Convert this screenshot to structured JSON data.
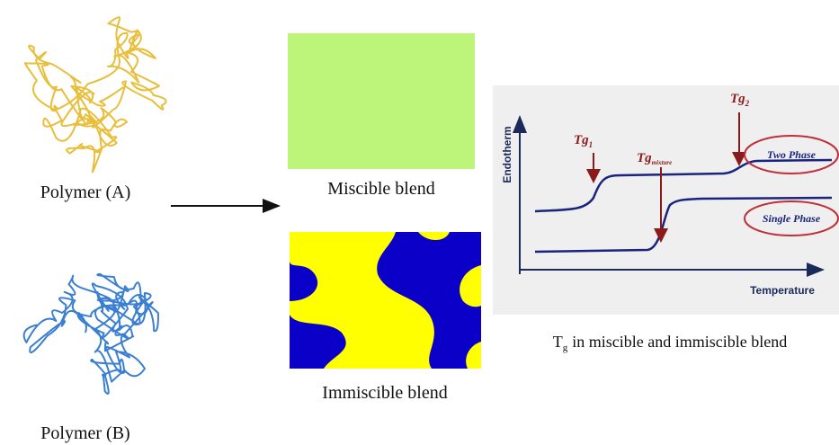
{
  "polymers": [
    {
      "label": "Polymer (A)"
    },
    {
      "label": "Polymer (B)"
    }
  ],
  "blends": [
    {
      "label": "Miscible blend"
    },
    {
      "label": "Immiscible blend"
    }
  ],
  "graph": {
    "y_axis": "Endotherm",
    "x_axis": "Temperature",
    "markers": [
      {
        "symbol": "Tg",
        "subscript": "1"
      },
      {
        "symbol": "Tg",
        "subscript": "mixture"
      },
      {
        "symbol": "Tg",
        "subscript": "2"
      }
    ],
    "curves": [
      {
        "label": "Two Phase"
      },
      {
        "label": "Single Phase"
      }
    ],
    "caption": {
      "symbol": "T",
      "subscript": "g",
      "text": "in miscible and immiscible blend"
    }
  }
}
